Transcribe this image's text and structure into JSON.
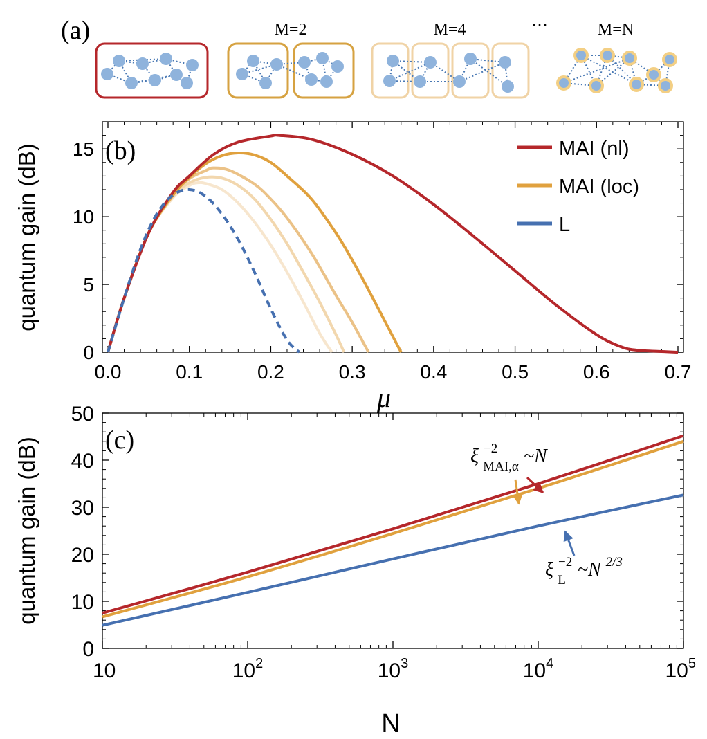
{
  "panel_a": {
    "label": "(a)",
    "groups": [
      {
        "label": "",
        "color": "#b5272b",
        "boxes": 1,
        "circle_border": ""
      },
      {
        "label": "M=2",
        "color": "#d6a241",
        "boxes": 2,
        "circle_border": ""
      },
      {
        "label": "M=4",
        "color": "#f0d3a6",
        "boxes": 4,
        "circle_border": ""
      },
      {
        "label": "M=N",
        "color": "",
        "boxes": 0,
        "circle_border": "#f3cf84"
      }
    ],
    "ellipsis": "···",
    "node_color": "#8fb3dc",
    "link_color": "#4a79b4"
  },
  "chart_data": [
    {
      "type": "line",
      "panel_label": "(b)",
      "xlabel": "μ",
      "ylabel": "quantum gain (dB)",
      "xlim": [
        0,
        0.7
      ],
      "ylim": [
        0,
        17
      ],
      "xticks": [
        "0.0",
        "0.1",
        "0.2",
        "0.3",
        "0.4",
        "0.5",
        "0.6",
        "0.7"
      ],
      "yticks": [
        "0",
        "5",
        "10",
        "15"
      ],
      "legend_position": "top-right",
      "legend": [
        {
          "label": "MAI (nl)",
          "color": "#b5272b"
        },
        {
          "label": "MAI (loc)",
          "color": "#e0a13e"
        },
        {
          "label": "L",
          "color": "#4670b0"
        }
      ],
      "series": [
        {
          "name": "MAI (nl)",
          "color": "#b5272b",
          "style": "solid",
          "x": [
            0.0,
            0.02,
            0.05,
            0.08,
            0.1,
            0.13,
            0.16,
            0.2,
            0.21,
            0.25,
            0.3,
            0.35,
            0.4,
            0.45,
            0.5,
            0.55,
            0.6,
            0.63,
            0.65,
            0.68,
            0.7
          ],
          "y": [
            0.0,
            4.0,
            8.8,
            11.8,
            13.0,
            14.6,
            15.5,
            15.95,
            16.0,
            15.7,
            14.6,
            13.0,
            10.9,
            8.5,
            6.0,
            3.5,
            1.3,
            0.4,
            0.15,
            0.05,
            0.0
          ]
        },
        {
          "name": "",
          "color": "#e0a13e",
          "style": "solid",
          "x": [
            0.0,
            0.02,
            0.05,
            0.08,
            0.1,
            0.12,
            0.14,
            0.16,
            0.18,
            0.2,
            0.22,
            0.25,
            0.28,
            0.3,
            0.32,
            0.34,
            0.36
          ],
          "y": [
            0.0,
            4.0,
            8.8,
            11.6,
            12.9,
            13.9,
            14.5,
            14.7,
            14.55,
            14.0,
            13.0,
            11.3,
            8.8,
            6.8,
            4.6,
            2.3,
            0.0
          ]
        },
        {
          "name": "",
          "color": "#ebc287",
          "style": "solid",
          "x": [
            0.0,
            0.02,
            0.05,
            0.08,
            0.1,
            0.12,
            0.13,
            0.15,
            0.18,
            0.2,
            0.22,
            0.25,
            0.28,
            0.3,
            0.32
          ],
          "y": [
            0.0,
            4.0,
            8.8,
            11.6,
            12.8,
            13.4,
            13.6,
            13.4,
            12.4,
            11.3,
            9.9,
            7.3,
            4.2,
            2.2,
            0.0
          ]
        },
        {
          "name": "",
          "color": "#f2d7ae",
          "style": "solid",
          "x": [
            0.0,
            0.02,
            0.05,
            0.08,
            0.1,
            0.12,
            0.14,
            0.16,
            0.18,
            0.2,
            0.22,
            0.24,
            0.26,
            0.28,
            0.29
          ],
          "y": [
            0.0,
            4.0,
            8.8,
            11.5,
            12.5,
            12.9,
            12.85,
            12.3,
            11.3,
            9.8,
            8.0,
            5.9,
            3.7,
            1.3,
            0.0
          ]
        },
        {
          "name": "",
          "color": "#f7e6ce",
          "style": "solid",
          "x": [
            0.0,
            0.02,
            0.05,
            0.08,
            0.1,
            0.11,
            0.12,
            0.14,
            0.16,
            0.18,
            0.2,
            0.22,
            0.24,
            0.26,
            0.275
          ],
          "y": [
            0.0,
            4.0,
            8.8,
            11.4,
            12.3,
            12.5,
            12.45,
            12.0,
            11.0,
            9.6,
            7.9,
            5.9,
            3.7,
            1.4,
            0.0
          ]
        },
        {
          "name": "L",
          "color": "#4670b0",
          "style": "dashed",
          "x": [
            0.0,
            0.02,
            0.04,
            0.06,
            0.08,
            0.1,
            0.12,
            0.14,
            0.16,
            0.18,
            0.2,
            0.22,
            0.235
          ],
          "y": [
            0.0,
            4.0,
            7.6,
            10.2,
            11.6,
            12.0,
            11.5,
            10.2,
            8.3,
            5.9,
            3.2,
            0.9,
            0.0
          ]
        }
      ]
    },
    {
      "type": "line",
      "panel_label": "(c)",
      "xlabel": "N",
      "ylabel": "quantum gain (dB)",
      "xscale": "log",
      "xlim": [
        10,
        100000
      ],
      "ylim": [
        0,
        50
      ],
      "xticks": [
        {
          "base": "10",
          "exp": ""
        },
        {
          "base": "10",
          "exp": "2"
        },
        {
          "base": "10",
          "exp": "3"
        },
        {
          "base": "10",
          "exp": "4"
        },
        {
          "base": "10",
          "exp": "5"
        }
      ],
      "yticks": [
        "0",
        "10",
        "20",
        "30",
        "40",
        "50"
      ],
      "series": [
        {
          "name": "",
          "color": "#b5272b",
          "x": [
            10,
            100,
            1000,
            10000,
            100000
          ],
          "y": [
            7.5,
            16.2,
            25.4,
            35.0,
            45.2
          ]
        },
        {
          "name": "",
          "color": "#e0a13e",
          "x": [
            10,
            100,
            1000,
            10000,
            100000
          ],
          "y": [
            6.7,
            15.2,
            24.4,
            34.0,
            44.0
          ]
        },
        {
          "name": "",
          "color": "#4670b0",
          "x": [
            10,
            100,
            1000,
            10000,
            100000
          ],
          "y": [
            4.9,
            11.9,
            19.0,
            26.0,
            32.6
          ]
        }
      ],
      "annotations": [
        {
          "text_base": "ξ",
          "sup": "−2",
          "sub": "MAI,α",
          "rest": "~N",
          "color_arrows": [
            "#e0a13e",
            "#b5272b"
          ]
        },
        {
          "text_base": "ξ",
          "sup": "−2",
          "sub": "L",
          "rest": "~N",
          "rest_sup": "2/3",
          "color_arrows": [
            "#4670b0"
          ]
        }
      ]
    }
  ]
}
